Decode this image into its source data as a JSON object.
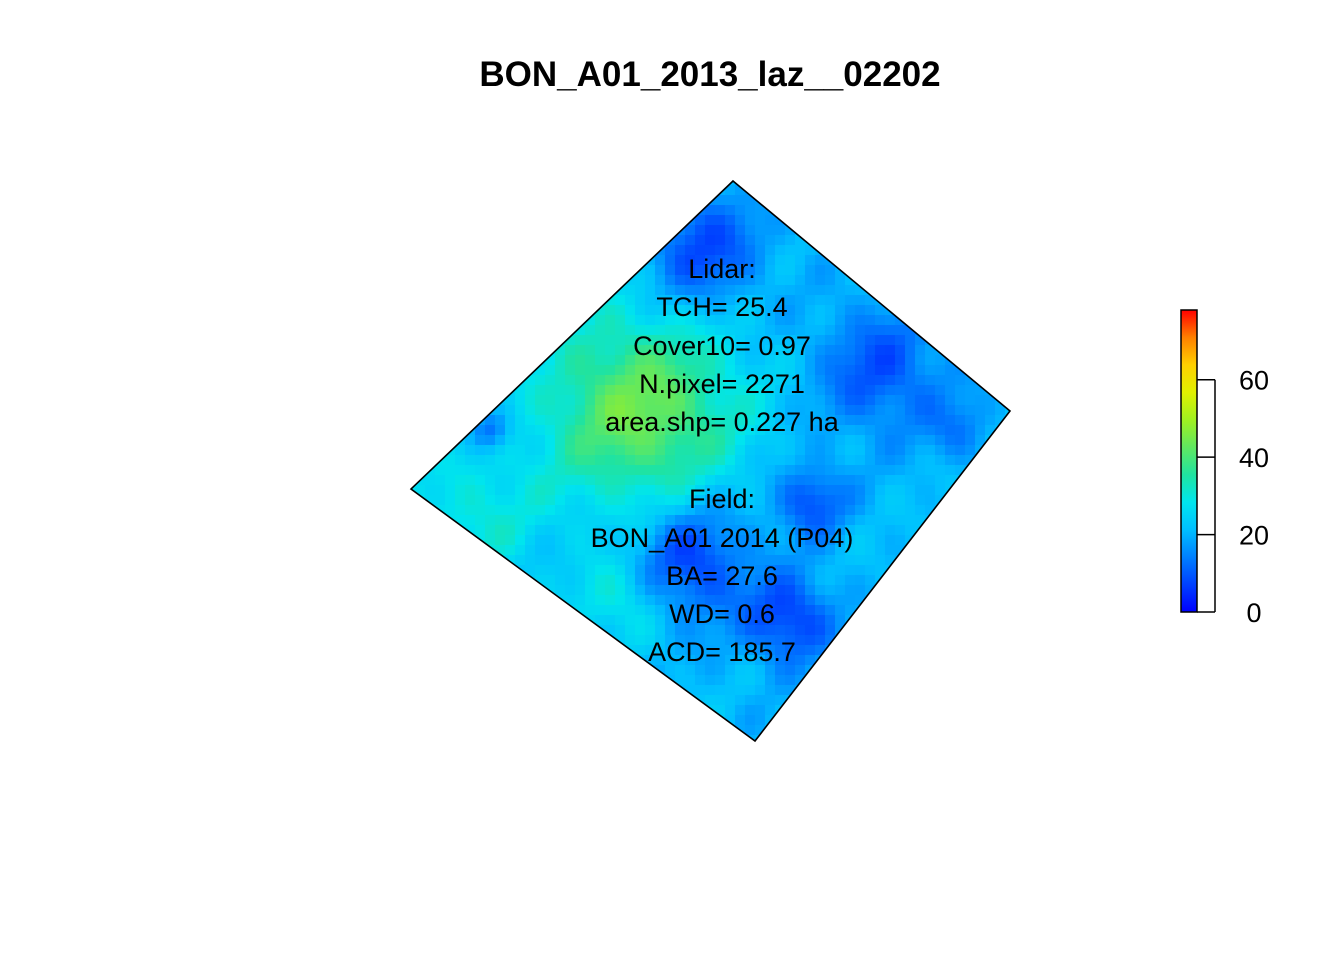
{
  "title": "BON_A01_2013_laz__02202",
  "lidar_block": [
    "Lidar:",
    "TCH= 25.4",
    "Cover10= 0.97",
    "N.pixel= 2271",
    "area.shp= 0.227 ha"
  ],
  "field_block": [
    "Field:",
    "BON_A01 2014 (P04)",
    "BA= 27.6",
    "WD= 0.6",
    "ACD= 185.7"
  ],
  "legend": {
    "min": 0,
    "max": 78,
    "ticks": [
      0,
      20,
      40,
      60
    ],
    "tick_labels": [
      "0",
      "20",
      "40",
      "60"
    ],
    "palette": [
      "#0000ff",
      "#0040ff",
      "#0080ff",
      "#00bfff",
      "#00e5ee",
      "#20e3a0",
      "#60e860",
      "#a0f020",
      "#e0f000",
      "#ffd000",
      "#ff8000",
      "#ff0000"
    ]
  },
  "colors": {
    "outline": "#000000",
    "low": "#0a1fff",
    "mid": "#14d4e6",
    "high": "#8be84a"
  }
}
